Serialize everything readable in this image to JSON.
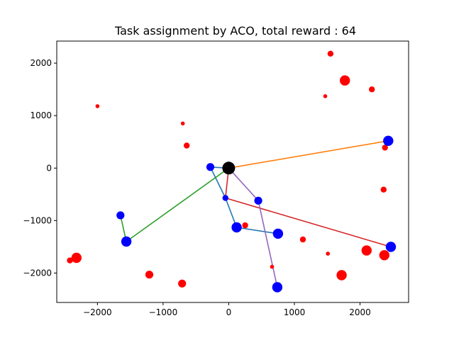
{
  "chart_data": {
    "type": "scatter",
    "title": "Task assignment by ACO, total reward : 64",
    "xlabel": "",
    "ylabel": "",
    "xlim": [
      -2620,
      2740
    ],
    "ylim": [
      -2560,
      2420
    ],
    "xticks": [
      -2000,
      -1000,
      0,
      1000,
      2000
    ],
    "yticks": [
      -2000,
      -1000,
      0,
      1000,
      2000
    ],
    "xtick_labels": [
      "−2000",
      "−1000",
      "0",
      "1000",
      "2000"
    ],
    "ytick_labels": [
      "−2000",
      "−1000",
      "0",
      "1000",
      "2000"
    ],
    "grid": false,
    "legend": "none",
    "depot": {
      "x": 0,
      "y": 0,
      "color": "#000000"
    },
    "assigned_tasks": {
      "color": "#0000ff",
      "points": [
        {
          "x": 2430,
          "y": 520,
          "size": "large"
        },
        {
          "x": -280,
          "y": 20,
          "size": "medium"
        },
        {
          "x": -50,
          "y": -570,
          "size": "small"
        },
        {
          "x": 450,
          "y": -620,
          "size": "medium"
        },
        {
          "x": 120,
          "y": -1130,
          "size": "large"
        },
        {
          "x": 750,
          "y": -1250,
          "size": "large"
        },
        {
          "x": -1650,
          "y": -900,
          "size": "medium"
        },
        {
          "x": -1560,
          "y": -1400,
          "size": "large"
        },
        {
          "x": 2470,
          "y": -1500,
          "size": "large"
        },
        {
          "x": 740,
          "y": -2270,
          "size": "large"
        }
      ]
    },
    "unassigned_tasks": {
      "color": "#ff0000",
      "points": [
        {
          "x": 1550,
          "y": 2180,
          "size": "small"
        },
        {
          "x": 1770,
          "y": 1670,
          "size": "large"
        },
        {
          "x": 2180,
          "y": 1500,
          "size": "small"
        },
        {
          "x": 1470,
          "y": 1370,
          "size": "tiny"
        },
        {
          "x": -2000,
          "y": 1180,
          "size": "tiny"
        },
        {
          "x": -700,
          "y": 850,
          "size": "tiny"
        },
        {
          "x": -640,
          "y": 430,
          "size": "small"
        },
        {
          "x": 2380,
          "y": 390,
          "size": "small"
        },
        {
          "x": 2360,
          "y": -410,
          "size": "small"
        },
        {
          "x": 250,
          "y": -1090,
          "size": "small"
        },
        {
          "x": 1130,
          "y": -1360,
          "size": "small"
        },
        {
          "x": 2100,
          "y": -1570,
          "size": "large"
        },
        {
          "x": 2370,
          "y": -1660,
          "size": "large"
        },
        {
          "x": 1510,
          "y": -1630,
          "size": "tiny"
        },
        {
          "x": -2320,
          "y": -1710,
          "size": "large"
        },
        {
          "x": -2420,
          "y": -1760,
          "size": "small"
        },
        {
          "x": 660,
          "y": -1880,
          "size": "tiny"
        },
        {
          "x": -1210,
          "y": -2030,
          "size": "medium"
        },
        {
          "x": -710,
          "y": -2200,
          "size": "medium"
        },
        {
          "x": 1720,
          "y": -2040,
          "size": "large"
        }
      ]
    },
    "routes": [
      {
        "color": "#1f77b4",
        "points": [
          [
            0,
            0
          ],
          [
            -280,
            20
          ],
          [
            -50,
            -570
          ],
          [
            120,
            -1130
          ],
          [
            750,
            -1250
          ]
        ]
      },
      {
        "color": "#ff7f0e",
        "points": [
          [
            0,
            0
          ],
          [
            2430,
            520
          ]
        ]
      },
      {
        "color": "#2ca02c",
        "points": [
          [
            0,
            0
          ],
          [
            -1560,
            -1400
          ],
          [
            -1650,
            -900
          ]
        ]
      },
      {
        "color": "#d62728",
        "points": [
          [
            0,
            0
          ],
          [
            -50,
            -570
          ],
          [
            2470,
            -1500
          ]
        ]
      },
      {
        "color": "#9467bd",
        "points": [
          [
            0,
            0
          ],
          [
            450,
            -620
          ],
          [
            740,
            -2270
          ]
        ]
      }
    ]
  }
}
